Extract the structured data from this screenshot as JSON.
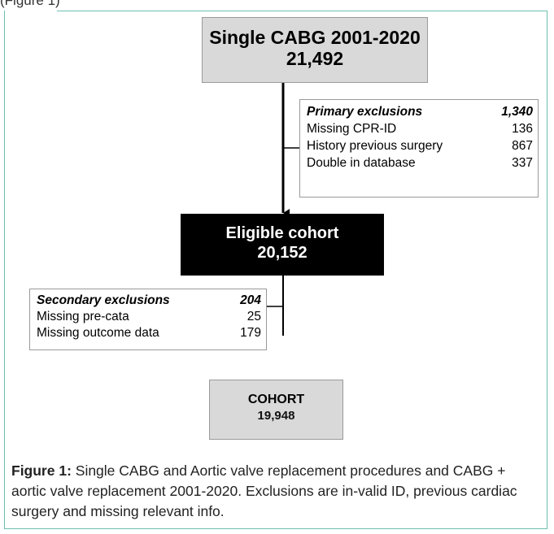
{
  "top_caption": "(Figure 1)",
  "top_box": {
    "title": "Single CABG 2001-2020",
    "count": "21,492"
  },
  "primary_exclusions": {
    "header": {
      "label": "Primary exclusions",
      "value": "1,340"
    },
    "rows": [
      {
        "label": "Missing CPR-ID",
        "value": "136"
      },
      {
        "label": "History previous surgery",
        "value": "867"
      },
      {
        "label": "Double in database",
        "value": "337"
      }
    ]
  },
  "eligible_box": {
    "title": "Eligible cohort",
    "count": "20,152"
  },
  "secondary_exclusions": {
    "header": {
      "label": "Secondary exclusions",
      "value": "204"
    },
    "rows": [
      {
        "label": "Missing pre-cata",
        "value": "25"
      },
      {
        "label": "Missing outcome data",
        "value": "179"
      }
    ]
  },
  "cohort_box": {
    "title": "COHORT",
    "count": "19,948"
  },
  "figure_caption": {
    "label": "Figure 1:",
    "text": " Single CABG and Aortic valve replacement procedures and CABG + aortic valve replacement 2001-2020. Exclusions are in-valid ID, previous cardiac surgery and missing relevant info."
  },
  "colors": {
    "frame": "#6cbfae",
    "gray_box": "#d9d9d9",
    "eligible_box": "#000000"
  }
}
